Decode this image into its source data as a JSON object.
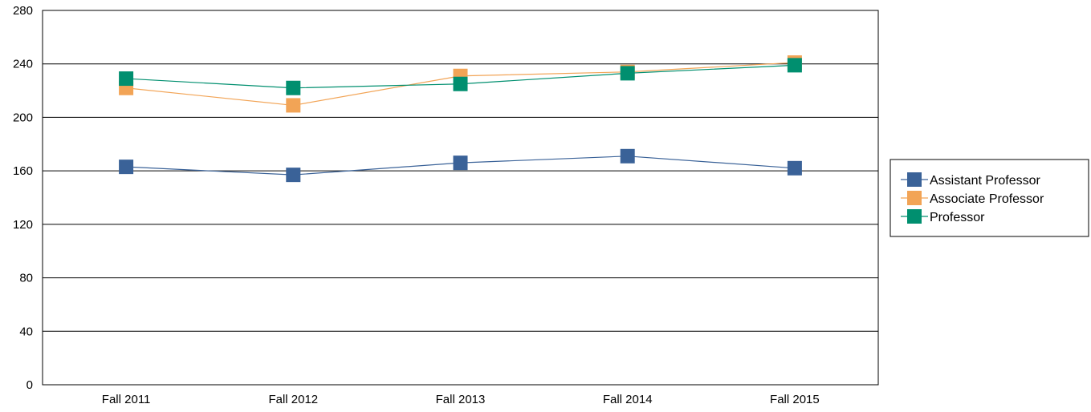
{
  "chart_data": {
    "type": "line",
    "title": "",
    "xlabel": "",
    "ylabel": "",
    "categories": [
      "Fall 2011",
      "Fall 2012",
      "Fall 2013",
      "Fall 2014",
      "Fall 2015"
    ],
    "ylim": [
      0,
      280
    ],
    "yticks": [
      "0",
      "40",
      "80",
      "120",
      "160",
      "200",
      "240",
      "280"
    ],
    "grid": "horizontal",
    "legend_position": "right",
    "series": [
      {
        "name": "Assistant Professor",
        "color": "#3A6298",
        "values": [
          163,
          157,
          166,
          171,
          162
        ]
      },
      {
        "name": "Associate Professor",
        "color": "#F2A456",
        "values": [
          222,
          209,
          231,
          234,
          241
        ]
      },
      {
        "name": "Professor",
        "color": "#008F6F",
        "values": [
          229,
          222,
          225,
          233,
          239
        ]
      }
    ]
  }
}
